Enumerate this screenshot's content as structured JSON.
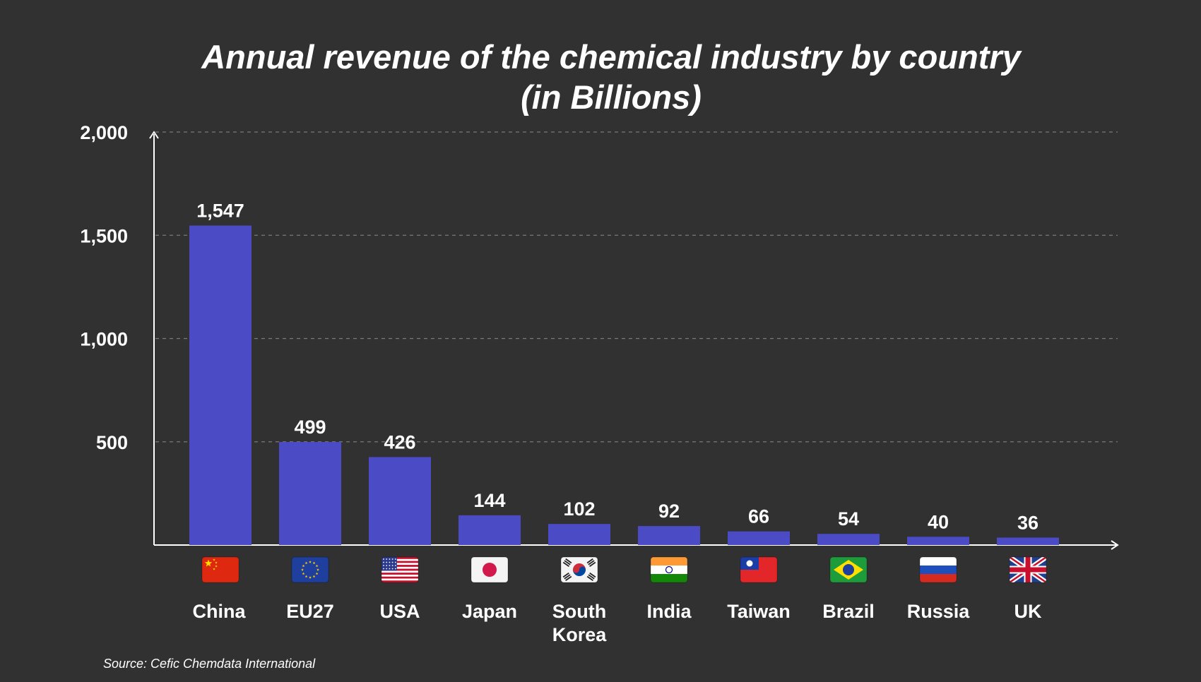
{
  "colors": {
    "background": "#313131",
    "bar": "#4c4bc6",
    "text": "#ffffff",
    "grid": "#7a7a7a"
  },
  "chart_data": {
    "type": "bar",
    "title_line1": "Annual revenue of the chemical industry by country",
    "title_line2": "(in Billions)",
    "categories": [
      "China",
      "EU27",
      "USA",
      "Japan",
      "South Korea",
      "India",
      "Taiwan",
      "Brazil",
      "Russia",
      "UK"
    ],
    "category_lines": [
      [
        "China"
      ],
      [
        "EU27"
      ],
      [
        "USA"
      ],
      [
        "Japan"
      ],
      [
        "South",
        "Korea"
      ],
      [
        "India"
      ],
      [
        "Taiwan"
      ],
      [
        "Brazil"
      ],
      [
        "Russia"
      ],
      [
        "UK"
      ]
    ],
    "flag_icons": [
      "flag-china-icon",
      "flag-eu-icon",
      "flag-usa-icon",
      "flag-japan-icon",
      "flag-south-korea-icon",
      "flag-india-icon",
      "flag-taiwan-icon",
      "flag-brazil-icon",
      "flag-russia-icon",
      "flag-uk-icon"
    ],
    "values": [
      1547,
      499,
      426,
      144,
      102,
      92,
      66,
      54,
      40,
      36
    ],
    "data_labels": [
      "1,547",
      "499",
      "426",
      "144",
      "102",
      "92",
      "66",
      "54",
      "40",
      "36"
    ],
    "yticks": [
      500,
      1000,
      1500,
      2000
    ],
    "ytick_labels": [
      "500",
      "1,000",
      "1,500",
      "2,000"
    ],
    "ylim": [
      0,
      2000
    ],
    "xlabel": "",
    "ylabel": "",
    "grid": true
  },
  "source": "Source: Cefic Chemdata International"
}
